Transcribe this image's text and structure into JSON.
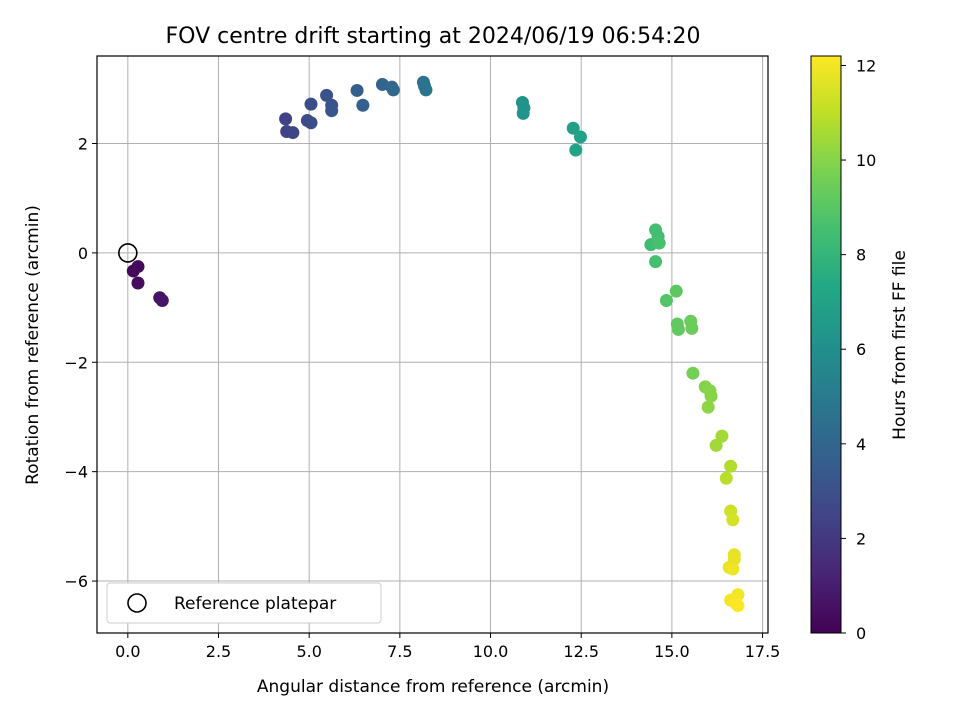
{
  "chart_data": {
    "type": "scatter",
    "title": "FOV centre drift starting at 2024/06/19 06:54:20",
    "xlabel": "Angular distance from reference (arcmin)",
    "ylabel": "Rotation from reference (arcmin)",
    "xlim": [
      -0.85,
      17.65
    ],
    "ylim": [
      -6.95,
      3.6
    ],
    "xticks": [
      0.0,
      2.5,
      5.0,
      7.5,
      10.0,
      12.5,
      15.0,
      17.5
    ],
    "xtick_labels": [
      "0.0",
      "2.5",
      "5.0",
      "7.5",
      "10.0",
      "12.5",
      "15.0",
      "17.5"
    ],
    "yticks": [
      -6,
      -4,
      -2,
      0,
      2
    ],
    "ytick_labels": [
      "−6",
      "−4",
      "−2",
      "0",
      "2"
    ],
    "grid": true,
    "colormap": "viridis",
    "colorbar": {
      "label": "Hours from first FF file",
      "range": [
        0,
        12.2
      ],
      "ticks": [
        0,
        2,
        4,
        6,
        8,
        10,
        12
      ],
      "tick_labels": [
        "0",
        "2",
        "4",
        "6",
        "8",
        "10",
        "12"
      ]
    },
    "reference_point": {
      "x": 0.0,
      "y": 0.0
    },
    "legend": {
      "position": "lower-left",
      "entries": [
        "Reference platepar"
      ]
    },
    "points": [
      {
        "x": 0.15,
        "y": -0.33,
        "t": 0.2
      },
      {
        "x": 0.28,
        "y": -0.25,
        "t": 0.3
      },
      {
        "x": 0.28,
        "y": -0.55,
        "t": 0.4
      },
      {
        "x": 0.88,
        "y": -0.82,
        "t": 0.6
      },
      {
        "x": 0.95,
        "y": -0.87,
        "t": 0.7
      },
      {
        "x": 4.35,
        "y": 2.45,
        "t": 2.4
      },
      {
        "x": 4.38,
        "y": 2.22,
        "t": 2.5
      },
      {
        "x": 4.55,
        "y": 2.2,
        "t": 2.5
      },
      {
        "x": 4.95,
        "y": 2.42,
        "t": 2.8
      },
      {
        "x": 5.05,
        "y": 2.38,
        "t": 2.8
      },
      {
        "x": 5.05,
        "y": 2.72,
        "t": 2.9
      },
      {
        "x": 5.48,
        "y": 2.88,
        "t": 3.1
      },
      {
        "x": 5.62,
        "y": 2.7,
        "t": 3.1
      },
      {
        "x": 5.62,
        "y": 2.6,
        "t": 3.2
      },
      {
        "x": 6.32,
        "y": 2.97,
        "t": 3.6
      },
      {
        "x": 6.48,
        "y": 2.7,
        "t": 3.7
      },
      {
        "x": 7.02,
        "y": 3.08,
        "t": 3.9
      },
      {
        "x": 7.28,
        "y": 3.03,
        "t": 4.0
      },
      {
        "x": 7.32,
        "y": 2.98,
        "t": 4.1
      },
      {
        "x": 8.15,
        "y": 3.12,
        "t": 4.6
      },
      {
        "x": 8.18,
        "y": 3.05,
        "t": 4.6
      },
      {
        "x": 8.22,
        "y": 2.98,
        "t": 4.7
      },
      {
        "x": 10.88,
        "y": 2.75,
        "t": 6.2
      },
      {
        "x": 10.92,
        "y": 2.65,
        "t": 6.2
      },
      {
        "x": 10.9,
        "y": 2.55,
        "t": 6.3
      },
      {
        "x": 12.28,
        "y": 2.28,
        "t": 6.9
      },
      {
        "x": 12.48,
        "y": 2.12,
        "t": 7.0
      },
      {
        "x": 12.35,
        "y": 1.88,
        "t": 7.0
      },
      {
        "x": 14.42,
        "y": 0.15,
        "t": 8.4
      },
      {
        "x": 14.55,
        "y": 0.42,
        "t": 8.5
      },
      {
        "x": 14.62,
        "y": 0.3,
        "t": 8.5
      },
      {
        "x": 14.65,
        "y": 0.18,
        "t": 8.6
      },
      {
        "x": 14.55,
        "y": -0.16,
        "t": 8.6
      },
      {
        "x": 14.85,
        "y": -0.87,
        "t": 8.9
      },
      {
        "x": 15.12,
        "y": -0.7,
        "t": 9.1
      },
      {
        "x": 15.15,
        "y": -1.3,
        "t": 9.2
      },
      {
        "x": 15.18,
        "y": -1.4,
        "t": 9.2
      },
      {
        "x": 15.52,
        "y": -1.25,
        "t": 9.4
      },
      {
        "x": 15.55,
        "y": -1.38,
        "t": 9.4
      },
      {
        "x": 15.58,
        "y": -2.2,
        "t": 9.6
      },
      {
        "x": 15.92,
        "y": -2.45,
        "t": 9.9
      },
      {
        "x": 16.05,
        "y": -2.52,
        "t": 10.0
      },
      {
        "x": 16.08,
        "y": -2.62,
        "t": 10.0
      },
      {
        "x": 16.0,
        "y": -2.82,
        "t": 10.1
      },
      {
        "x": 16.38,
        "y": -3.35,
        "t": 10.5
      },
      {
        "x": 16.22,
        "y": -3.52,
        "t": 10.5
      },
      {
        "x": 16.62,
        "y": -3.9,
        "t": 10.8
      },
      {
        "x": 16.5,
        "y": -4.12,
        "t": 10.9
      },
      {
        "x": 16.62,
        "y": -4.72,
        "t": 11.3
      },
      {
        "x": 16.68,
        "y": -4.88,
        "t": 11.4
      },
      {
        "x": 16.72,
        "y": -5.52,
        "t": 11.7
      },
      {
        "x": 16.72,
        "y": -5.6,
        "t": 11.8
      },
      {
        "x": 16.58,
        "y": -5.75,
        "t": 11.8
      },
      {
        "x": 16.68,
        "y": -5.78,
        "t": 11.9
      },
      {
        "x": 16.82,
        "y": -6.25,
        "t": 12.0
      },
      {
        "x": 16.62,
        "y": -6.35,
        "t": 12.0
      },
      {
        "x": 16.75,
        "y": -6.4,
        "t": 12.1
      },
      {
        "x": 16.82,
        "y": -6.45,
        "t": 12.2
      }
    ]
  }
}
